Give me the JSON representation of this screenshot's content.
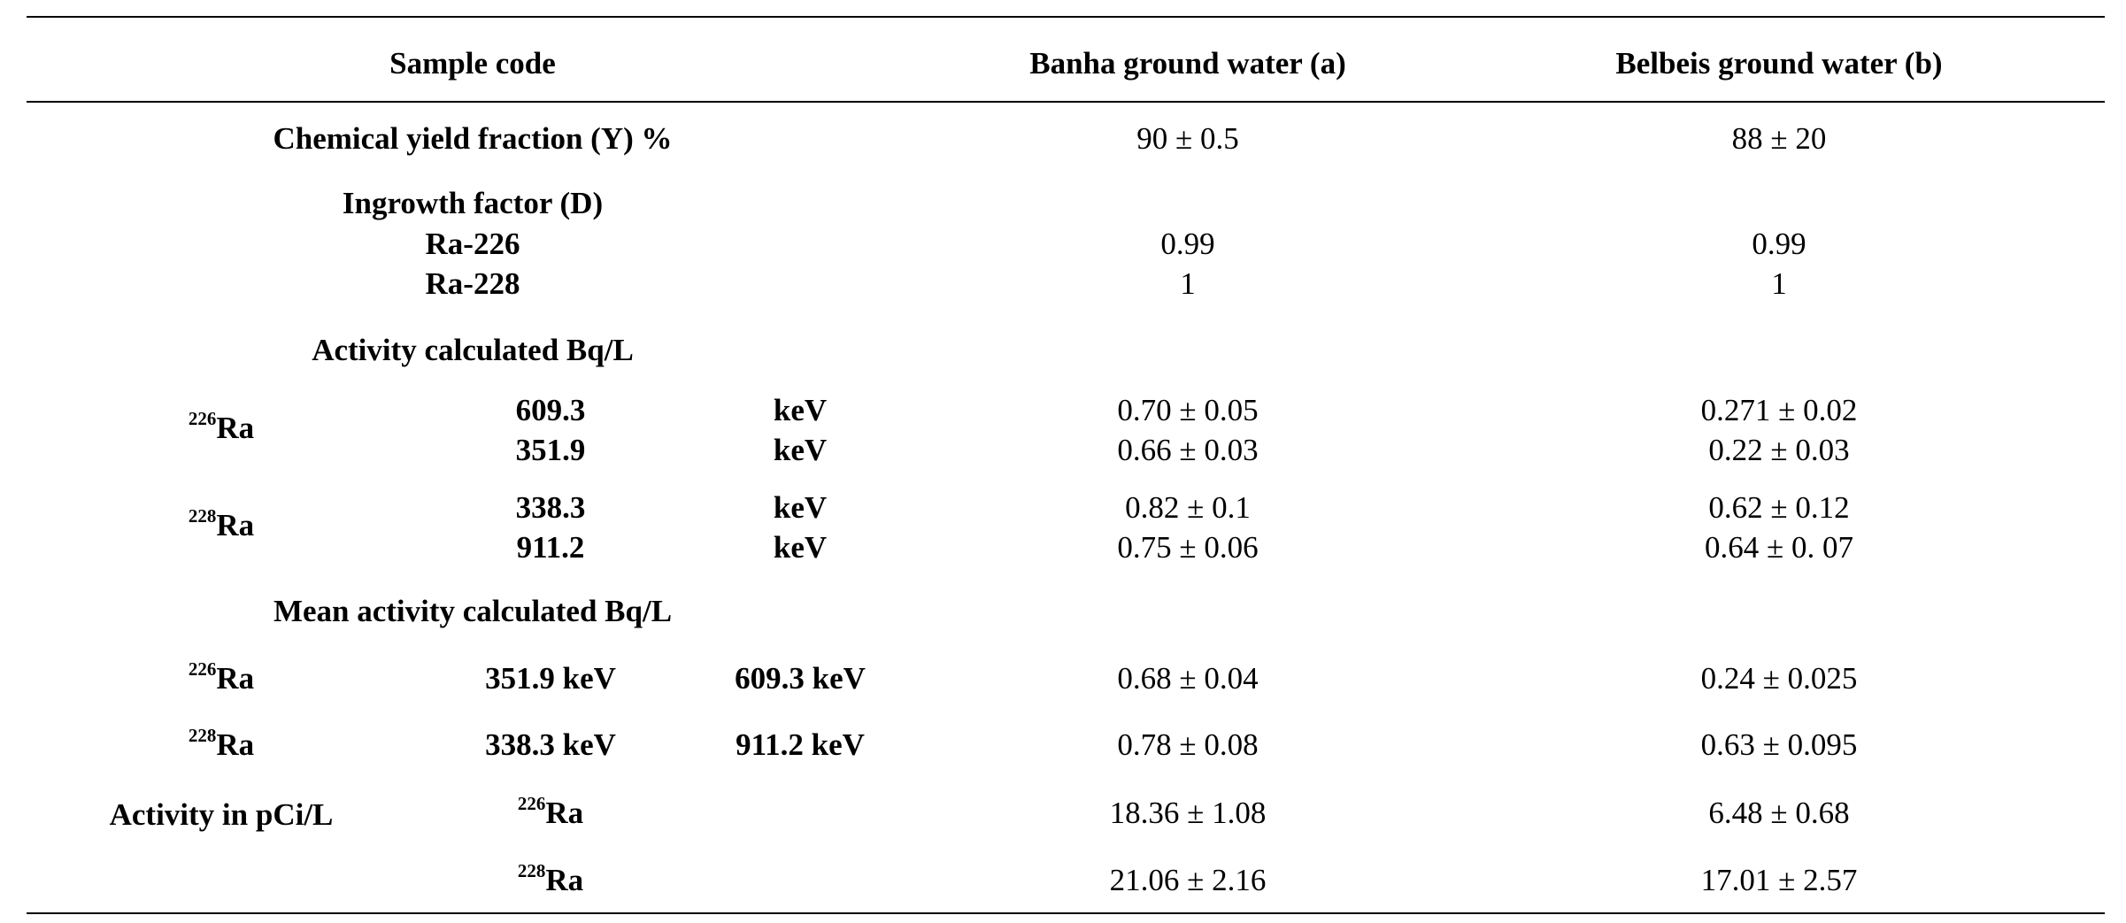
{
  "header": {
    "sample_code": "Sample code",
    "col_a": "Banha ground water (a)",
    "col_b": "Belbeis ground water (b)"
  },
  "chemical_yield": {
    "label": "Chemical yield fraction (Y) %",
    "a": "90 ± 0.5",
    "b": "88 ± 20"
  },
  "ingrowth": {
    "label": "Ingrowth factor (D)",
    "ra226": {
      "label": "Ra-226",
      "a": "0.99",
      "b": "0.99"
    },
    "ra228": {
      "label": "Ra-228",
      "a": "1",
      "b": "1"
    }
  },
  "activity": {
    "label": "Activity calculated Bq/L",
    "ra226": {
      "sup": "226",
      "sym": "Ra",
      "rows": [
        {
          "energy": "609.3",
          "unit": "keV",
          "a": "0.70 ± 0.05",
          "b": "0.271 ± 0.02"
        },
        {
          "energy": "351.9",
          "unit": "keV",
          "a": "0.66 ± 0.03",
          "b": "0.22 ± 0.03"
        }
      ]
    },
    "ra228": {
      "sup": "228",
      "sym": "Ra",
      "rows": [
        {
          "energy": "338.3",
          "unit": "keV",
          "a": "0.82 ± 0.1",
          "b": "0.62 ± 0.12"
        },
        {
          "energy": "911.2",
          "unit": "keV",
          "a": "0.75 ± 0.06",
          "b": "0.64 ± 0. 07"
        }
      ]
    }
  },
  "mean_activity": {
    "label": "Mean activity calculated Bq/L",
    "ra226": {
      "sup": "226",
      "sym": "Ra",
      "e1": "351.9 keV",
      "e2": "609.3 keV",
      "a": "0.68 ± 0.04",
      "b": "0.24 ± 0.025"
    },
    "ra228": {
      "sup": "228",
      "sym": "Ra",
      "e1": "338.3 keV",
      "e2": "911.2 keV",
      "a": "0.78 ± 0.08",
      "b": "0.63 ± 0.095"
    }
  },
  "pci": {
    "label": "Activity in pCi/L",
    "ra226": {
      "sup": "226",
      "sym": "Ra",
      "a": "18.36 ± 1.08",
      "b": "6.48 ± 0.68"
    },
    "ra228": {
      "sup": "228",
      "sym": "Ra",
      "a": "21.06 ± 2.16",
      "b": "17.01 ± 2.57"
    }
  }
}
